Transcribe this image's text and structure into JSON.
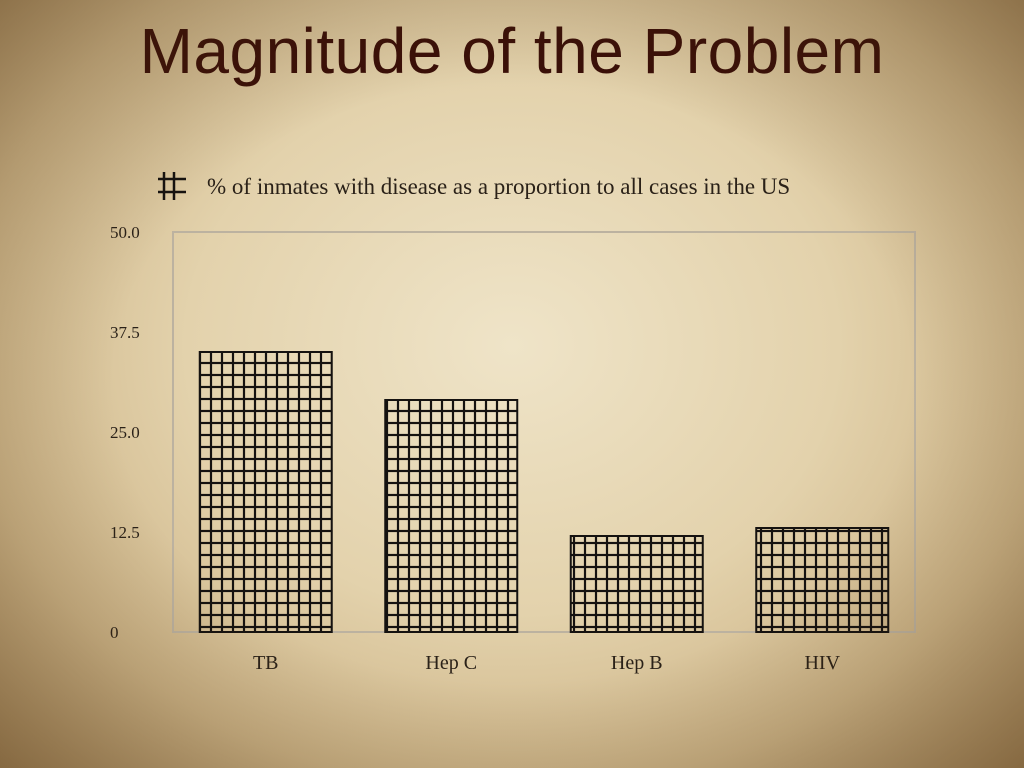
{
  "slide": {
    "title": "Magnitude of the Problem"
  },
  "chart_data": {
    "type": "bar",
    "categories": [
      "TB",
      "Hep C",
      "Hep B",
      "HIV"
    ],
    "series": [
      {
        "name": "% of inmates with disease as a proportion to all cases in the US",
        "values": [
          35,
          29,
          12,
          13
        ]
      }
    ],
    "yticks": [
      "0",
      "12.5",
      "25.0",
      "37.5",
      "50.0"
    ],
    "ytick_values": [
      0,
      12.5,
      25,
      37.5,
      50
    ],
    "ylim": [
      0,
      50
    ],
    "grid": false,
    "legend_position": "top",
    "bar_fill": "crosshatch",
    "colors": {
      "bar_stroke": "#151210",
      "plot_border": "#bcb2a0",
      "text": "#2a2118",
      "title": "#3a0f08"
    }
  }
}
